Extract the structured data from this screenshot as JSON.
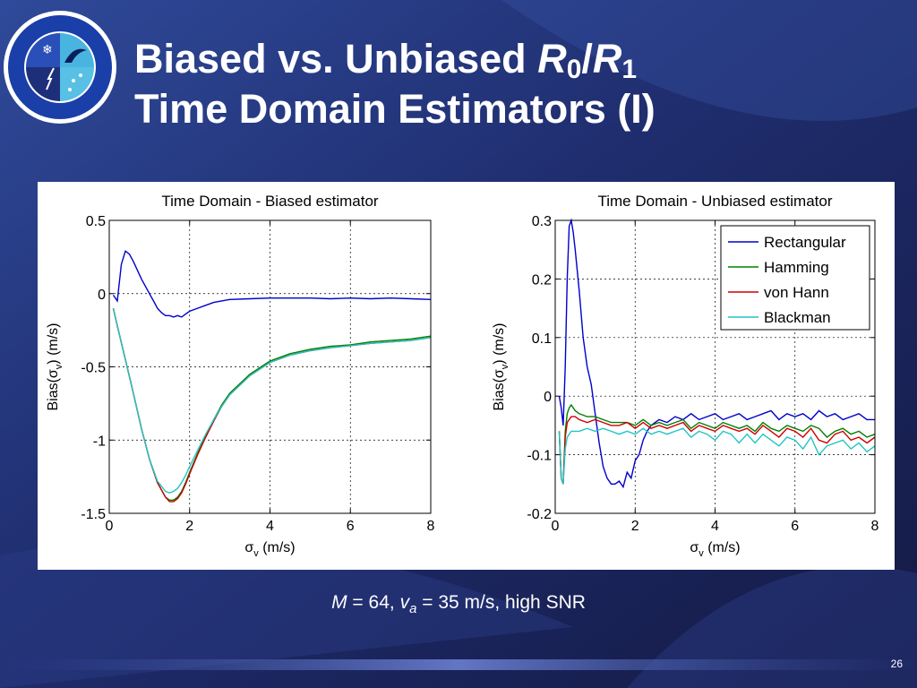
{
  "slide": {
    "title_line1_prefix": "Biased vs. Unbiased ",
    "title_var_r": "R",
    "title_sub0": "0",
    "title_slash": "/",
    "title_sub1": "1",
    "title_line2": "Time Domain Estimators (I)",
    "caption": {
      "m_var": "M",
      "m_value": " = 64, ",
      "v_var": "v",
      "v_sub": "a",
      "v_value": " = 35 m/s, high SNR"
    },
    "page_number": "26"
  },
  "colors": {
    "background": "#1b2456",
    "Rectangular": "#0000cc",
    "Hamming": "#008000",
    "von Hann": "#cc0000",
    "Blackman": "#22c4c4"
  },
  "chart_data": [
    {
      "type": "line",
      "title": "Time Domain - Biased estimator",
      "xlabel_sym": "σ",
      "xlabel_sub": "v",
      "xlabel_unit": " (m/s)",
      "ylabel_prefix": "Bias(σ",
      "ylabel_sub": "v",
      "ylabel_suffix": ") (m/s)",
      "xlim": [
        0,
        8
      ],
      "ylim": [
        -1.5,
        0.5
      ],
      "xticks": [
        "0",
        "2",
        "4",
        "6",
        "8"
      ],
      "yticks": [
        "-1.5",
        "-1",
        "-0.5",
        "0",
        "0.5"
      ],
      "xtick_values": [
        0,
        2,
        4,
        6,
        8
      ],
      "ytick_values": [
        -1.5,
        -1,
        -0.5,
        0,
        0.5
      ],
      "grid": true,
      "series": [
        {
          "name": "Rectangular",
          "x": [
            0.1,
            0.2,
            0.3,
            0.4,
            0.5,
            0.6,
            0.7,
            0.8,
            0.9,
            1.0,
            1.1,
            1.2,
            1.3,
            1.4,
            1.5,
            1.6,
            1.7,
            1.8,
            1.9,
            2.0,
            2.2,
            2.4,
            2.6,
            2.8,
            3.0,
            3.5,
            4.0,
            4.5,
            5.0,
            5.5,
            6.0,
            6.5,
            7.0,
            7.5,
            8.0
          ],
          "y": [
            -0.01,
            -0.05,
            0.2,
            0.29,
            0.27,
            0.22,
            0.16,
            0.1,
            0.05,
            0.0,
            -0.05,
            -0.1,
            -0.13,
            -0.15,
            -0.15,
            -0.16,
            -0.15,
            -0.16,
            -0.14,
            -0.12,
            -0.1,
            -0.08,
            -0.06,
            -0.05,
            -0.04,
            -0.035,
            -0.03,
            -0.03,
            -0.03,
            -0.035,
            -0.03,
            -0.035,
            -0.03,
            -0.035,
            -0.04
          ]
        },
        {
          "name": "Hamming",
          "x": [
            0.1,
            0.2,
            0.4,
            0.6,
            0.8,
            1.0,
            1.2,
            1.4,
            1.5,
            1.6,
            1.7,
            1.8,
            1.9,
            2.0,
            2.2,
            2.4,
            2.6,
            2.8,
            3.0,
            3.5,
            4.0,
            4.5,
            5.0,
            5.5,
            6.0,
            6.5,
            7.0,
            7.5,
            8.0
          ],
          "y": [
            -0.1,
            -0.22,
            -0.45,
            -0.68,
            -0.92,
            -1.13,
            -1.29,
            -1.39,
            -1.41,
            -1.41,
            -1.39,
            -1.35,
            -1.29,
            -1.22,
            -1.09,
            -0.97,
            -0.86,
            -0.76,
            -0.68,
            -0.55,
            -0.46,
            -0.41,
            -0.38,
            -0.36,
            -0.35,
            -0.33,
            -0.32,
            -0.31,
            -0.29
          ]
        },
        {
          "name": "von Hann",
          "x": [
            0.1,
            0.2,
            0.4,
            0.6,
            0.8,
            1.0,
            1.2,
            1.4,
            1.5,
            1.6,
            1.7,
            1.8,
            1.9,
            2.0,
            2.2,
            2.4,
            2.6,
            2.8,
            3.0,
            3.5,
            4.0,
            4.5,
            5.0,
            5.5,
            6.0,
            6.5,
            7.0,
            7.5,
            8.0
          ],
          "y": [
            -0.1,
            -0.22,
            -0.45,
            -0.68,
            -0.92,
            -1.13,
            -1.29,
            -1.39,
            -1.42,
            -1.42,
            -1.4,
            -1.36,
            -1.3,
            -1.23,
            -1.1,
            -0.98,
            -0.87,
            -0.77,
            -0.69,
            -0.56,
            -0.47,
            -0.42,
            -0.39,
            -0.37,
            -0.355,
            -0.34,
            -0.33,
            -0.32,
            -0.3
          ]
        },
        {
          "name": "Blackman",
          "x": [
            0.1,
            0.2,
            0.4,
            0.6,
            0.8,
            1.0,
            1.2,
            1.4,
            1.5,
            1.6,
            1.7,
            1.8,
            1.9,
            2.0,
            2.2,
            2.4,
            2.6,
            2.8,
            3.0,
            3.5,
            4.0,
            4.5,
            5.0,
            5.5,
            6.0,
            6.5,
            7.0,
            7.5,
            8.0
          ],
          "y": [
            -0.1,
            -0.22,
            -0.45,
            -0.68,
            -0.92,
            -1.13,
            -1.28,
            -1.35,
            -1.36,
            -1.35,
            -1.33,
            -1.29,
            -1.24,
            -1.18,
            -1.07,
            -0.96,
            -0.86,
            -0.77,
            -0.69,
            -0.56,
            -0.47,
            -0.42,
            -0.39,
            -0.37,
            -0.355,
            -0.34,
            -0.33,
            -0.32,
            -0.3
          ]
        }
      ]
    },
    {
      "type": "line",
      "title": "Time Domain - Unbiased estimator",
      "xlabel_sym": "σ",
      "xlabel_sub": "v",
      "xlabel_unit": " (m/s)",
      "ylabel_prefix": "Bias(σ",
      "ylabel_sub": "v",
      "ylabel_suffix": ") (m/s)",
      "xlim": [
        0,
        8
      ],
      "ylim": [
        -0.2,
        0.3
      ],
      "xticks": [
        "0",
        "2",
        "4",
        "6",
        "8"
      ],
      "yticks": [
        "-0.2",
        "-0.1",
        "0",
        "0.1",
        "0.2",
        "0.3"
      ],
      "xtick_values": [
        0,
        2,
        4,
        6,
        8
      ],
      "ytick_values": [
        -0.2,
        -0.1,
        0,
        0.1,
        0.2,
        0.3
      ],
      "grid": true,
      "legend_position": "top-right",
      "legend": [
        "Rectangular",
        "Hamming",
        "von Hann",
        "Blackman"
      ],
      "series": [
        {
          "name": "Rectangular",
          "x": [
            0.1,
            0.15,
            0.2,
            0.25,
            0.3,
            0.35,
            0.4,
            0.45,
            0.5,
            0.6,
            0.7,
            0.8,
            0.9,
            1.0,
            1.1,
            1.2,
            1.3,
            1.4,
            1.5,
            1.6,
            1.7,
            1.8,
            1.9,
            2.0,
            2.1,
            2.2,
            2.3,
            2.4,
            2.6,
            2.8,
            3.0,
            3.2,
            3.4,
            3.6,
            3.8,
            4.0,
            4.2,
            4.4,
            4.6,
            4.8,
            5.0,
            5.2,
            5.4,
            5.6,
            5.8,
            6.0,
            6.2,
            6.4,
            6.6,
            6.8,
            7.0,
            7.2,
            7.4,
            7.6,
            7.8,
            8.0
          ],
          "y": [
            0.0,
            -0.02,
            -0.05,
            0.05,
            0.2,
            0.29,
            0.3,
            0.28,
            0.25,
            0.18,
            0.1,
            0.05,
            0.02,
            -0.03,
            -0.08,
            -0.12,
            -0.14,
            -0.15,
            -0.15,
            -0.145,
            -0.155,
            -0.13,
            -0.14,
            -0.11,
            -0.1,
            -0.075,
            -0.06,
            -0.05,
            -0.04,
            -0.045,
            -0.035,
            -0.04,
            -0.03,
            -0.04,
            -0.035,
            -0.03,
            -0.04,
            -0.035,
            -0.03,
            -0.04,
            -0.035,
            -0.03,
            -0.025,
            -0.04,
            -0.03,
            -0.035,
            -0.03,
            -0.04,
            -0.025,
            -0.035,
            -0.03,
            -0.04,
            -0.035,
            -0.03,
            -0.04,
            -0.04
          ]
        },
        {
          "name": "Hamming",
          "x": [
            0.1,
            0.15,
            0.2,
            0.25,
            0.3,
            0.35,
            0.4,
            0.5,
            0.6,
            0.8,
            1.0,
            1.2,
            1.4,
            1.6,
            1.8,
            2.0,
            2.2,
            2.4,
            2.6,
            2.8,
            3.0,
            3.2,
            3.4,
            3.6,
            3.8,
            4.0,
            4.2,
            4.4,
            4.6,
            4.8,
            5.0,
            5.2,
            5.4,
            5.6,
            5.8,
            6.0,
            6.2,
            6.4,
            6.6,
            6.8,
            7.0,
            7.2,
            7.4,
            7.6,
            7.8,
            8.0
          ],
          "y": [
            -0.06,
            -0.14,
            -0.15,
            -0.06,
            -0.03,
            -0.02,
            -0.015,
            -0.025,
            -0.03,
            -0.035,
            -0.035,
            -0.04,
            -0.045,
            -0.045,
            -0.045,
            -0.05,
            -0.04,
            -0.05,
            -0.045,
            -0.05,
            -0.045,
            -0.04,
            -0.055,
            -0.045,
            -0.05,
            -0.055,
            -0.045,
            -0.05,
            -0.055,
            -0.05,
            -0.06,
            -0.045,
            -0.055,
            -0.06,
            -0.05,
            -0.055,
            -0.06,
            -0.05,
            -0.055,
            -0.07,
            -0.06,
            -0.055,
            -0.065,
            -0.06,
            -0.07,
            -0.065
          ]
        },
        {
          "name": "von Hann",
          "x": [
            0.1,
            0.15,
            0.2,
            0.25,
            0.3,
            0.35,
            0.4,
            0.5,
            0.6,
            0.8,
            1.0,
            1.2,
            1.4,
            1.6,
            1.8,
            2.0,
            2.2,
            2.4,
            2.6,
            2.8,
            3.0,
            3.2,
            3.4,
            3.6,
            3.8,
            4.0,
            4.2,
            4.4,
            4.6,
            4.8,
            5.0,
            5.2,
            5.4,
            5.6,
            5.8,
            6.0,
            6.2,
            6.4,
            6.6,
            6.8,
            7.0,
            7.2,
            7.4,
            7.6,
            7.8,
            8.0
          ],
          "y": [
            -0.06,
            -0.14,
            -0.15,
            -0.07,
            -0.045,
            -0.04,
            -0.035,
            -0.035,
            -0.04,
            -0.045,
            -0.04,
            -0.045,
            -0.05,
            -0.05,
            -0.045,
            -0.055,
            -0.045,
            -0.055,
            -0.05,
            -0.055,
            -0.05,
            -0.045,
            -0.06,
            -0.05,
            -0.055,
            -0.06,
            -0.05,
            -0.055,
            -0.06,
            -0.055,
            -0.065,
            -0.05,
            -0.06,
            -0.07,
            -0.055,
            -0.06,
            -0.07,
            -0.055,
            -0.075,
            -0.08,
            -0.065,
            -0.06,
            -0.075,
            -0.07,
            -0.08,
            -0.07
          ]
        },
        {
          "name": "Blackman",
          "x": [
            0.1,
            0.15,
            0.2,
            0.25,
            0.3,
            0.35,
            0.4,
            0.5,
            0.6,
            0.8,
            1.0,
            1.2,
            1.4,
            1.6,
            1.8,
            2.0,
            2.2,
            2.4,
            2.6,
            2.8,
            3.0,
            3.2,
            3.4,
            3.6,
            3.8,
            4.0,
            4.2,
            4.4,
            4.6,
            4.8,
            5.0,
            5.2,
            5.4,
            5.6,
            5.8,
            6.0,
            6.2,
            6.4,
            6.6,
            6.8,
            7.0,
            7.2,
            7.4,
            7.6,
            7.8,
            8.0
          ],
          "y": [
            -0.06,
            -0.14,
            -0.15,
            -0.09,
            -0.07,
            -0.065,
            -0.06,
            -0.06,
            -0.06,
            -0.055,
            -0.06,
            -0.055,
            -0.06,
            -0.065,
            -0.06,
            -0.065,
            -0.055,
            -0.065,
            -0.06,
            -0.065,
            -0.06,
            -0.055,
            -0.07,
            -0.06,
            -0.065,
            -0.075,
            -0.06,
            -0.065,
            -0.08,
            -0.065,
            -0.08,
            -0.065,
            -0.075,
            -0.085,
            -0.07,
            -0.075,
            -0.09,
            -0.07,
            -0.1,
            -0.085,
            -0.08,
            -0.075,
            -0.09,
            -0.08,
            -0.095,
            -0.085
          ]
        }
      ]
    }
  ]
}
